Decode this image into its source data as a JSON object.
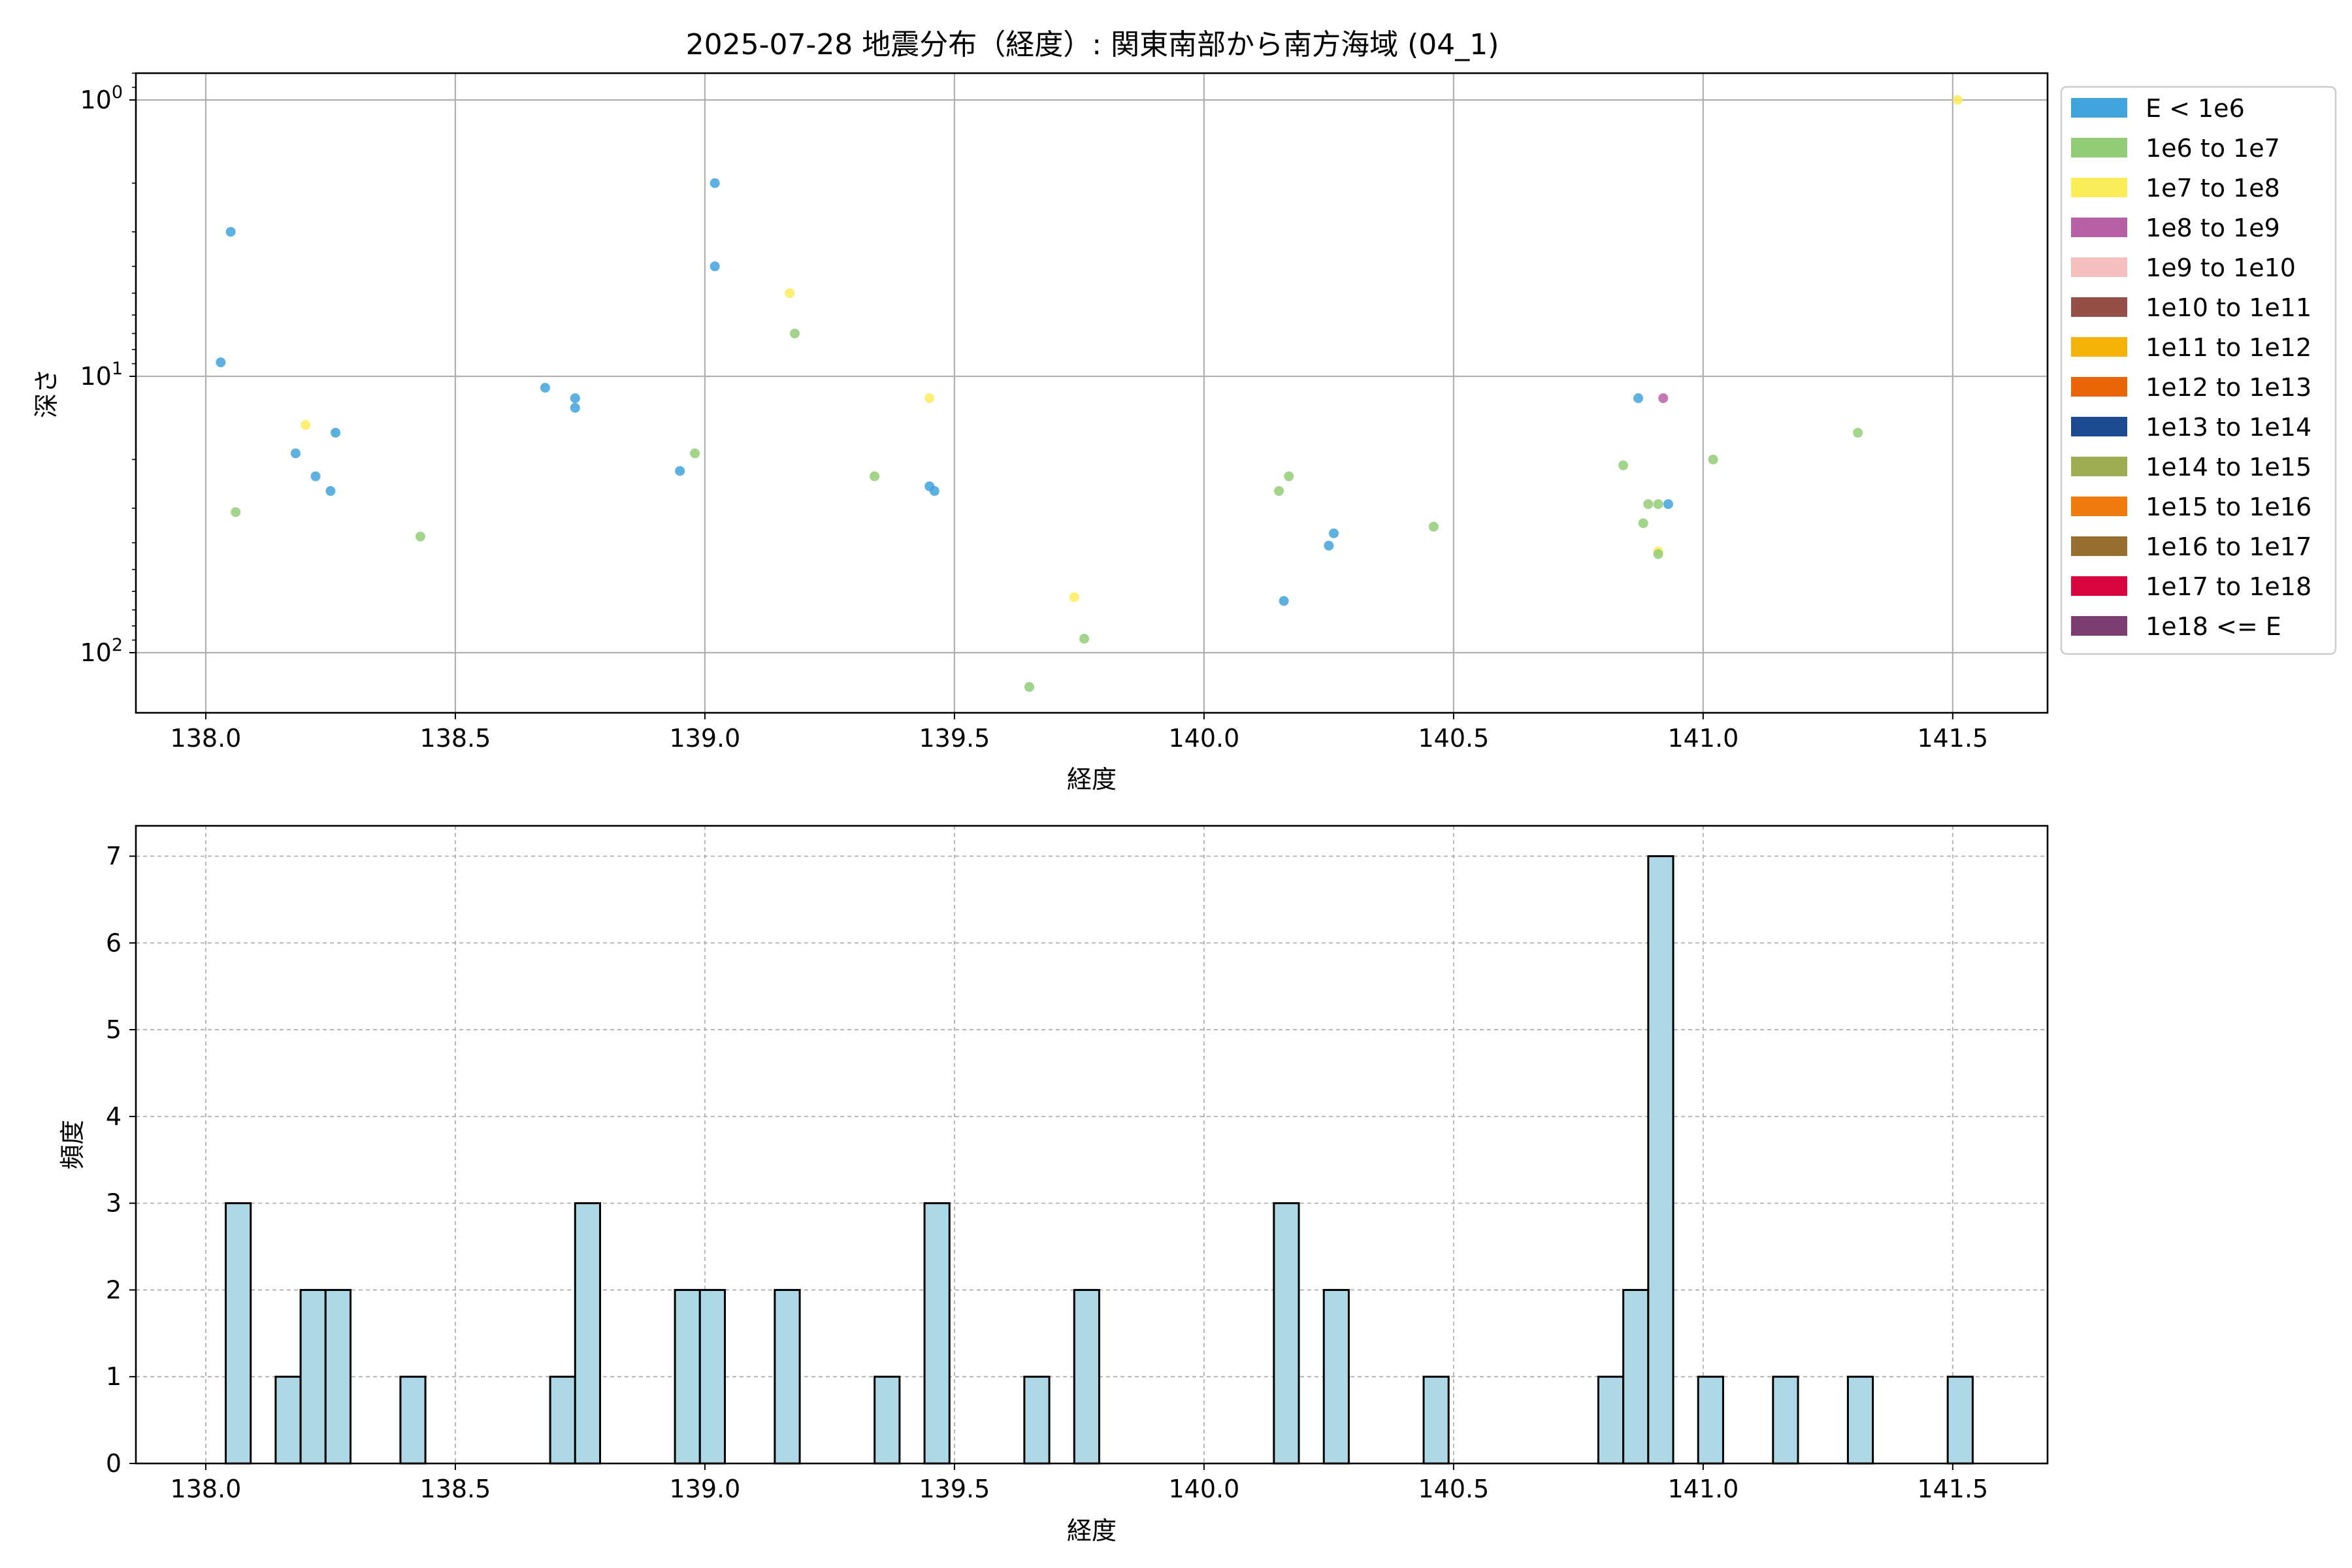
{
  "chart_data": [
    {
      "type": "scatter",
      "title": "2025-07-28 地震分布（経度）: 関東南部から南方海域 (04_1)",
      "xlabel": "経度",
      "ylabel": "深さ",
      "y_scale": "log",
      "y_inverted": true,
      "xlim": [
        137.86,
        141.69
      ],
      "ylim": [
        165,
        0.8
      ],
      "x_ticks": [
        138.0,
        138.5,
        139.0,
        139.5,
        140.0,
        140.5,
        141.0,
        141.5
      ],
      "x_tick_labels": [
        "138.0",
        "138.5",
        "139.0",
        "139.5",
        "140.0",
        "140.5",
        "141.0",
        "141.5"
      ],
      "y_ticks": [
        1,
        10,
        100
      ],
      "grid": true,
      "legend_position": "outside-right",
      "legend": [
        {
          "label": "E < 1e6",
          "color": "#3fa3dc"
        },
        {
          "label": "1e6 to 1e7",
          "color": "#92cc77"
        },
        {
          "label": "1e7 to 1e8",
          "color": "#fbec5a"
        },
        {
          "label": "1e8 to 1e9",
          "color": "#b760a6"
        },
        {
          "label": "1e9 to 1e10",
          "color": "#f4bfbd"
        },
        {
          "label": "1e10 to 1e11",
          "color": "#945048"
        },
        {
          "label": "1e11 to 1e12",
          "color": "#f5b30a"
        },
        {
          "label": "1e12 to 1e13",
          "color": "#ea6506"
        },
        {
          "label": "1e13 to 1e14",
          "color": "#1b4a91"
        },
        {
          "label": "1e14 to 1e15",
          "color": "#9dae52"
        },
        {
          "label": "1e15 to 1e16",
          "color": "#ef7c0c"
        },
        {
          "label": "1e16 to 1e17",
          "color": "#976f2e"
        },
        {
          "label": "1e17 to 1e18",
          "color": "#d8063e"
        },
        {
          "label": "1e18 <= E",
          "color": "#7b3d71"
        }
      ],
      "points": [
        {
          "x": 138.03,
          "y": 8.9,
          "class": 0
        },
        {
          "x": 138.05,
          "y": 3.0,
          "class": 0
        },
        {
          "x": 138.06,
          "y": 31,
          "class": 1
        },
        {
          "x": 138.18,
          "y": 19,
          "class": 0
        },
        {
          "x": 138.2,
          "y": 15,
          "class": 2
        },
        {
          "x": 138.22,
          "y": 23,
          "class": 0
        },
        {
          "x": 138.25,
          "y": 26,
          "class": 0
        },
        {
          "x": 138.26,
          "y": 16,
          "class": 0
        },
        {
          "x": 138.43,
          "y": 38,
          "class": 1
        },
        {
          "x": 138.68,
          "y": 11,
          "class": 0
        },
        {
          "x": 138.74,
          "y": 12,
          "class": 0
        },
        {
          "x": 138.74,
          "y": 13,
          "class": 0
        },
        {
          "x": 138.95,
          "y": 22,
          "class": 0
        },
        {
          "x": 138.98,
          "y": 19,
          "class": 1
        },
        {
          "x": 139.02,
          "y": 2.0,
          "class": 0
        },
        {
          "x": 139.02,
          "y": 4.0,
          "class": 0
        },
        {
          "x": 139.17,
          "y": 5.0,
          "class": 2
        },
        {
          "x": 139.18,
          "y": 7.0,
          "class": 1
        },
        {
          "x": 139.34,
          "y": 23,
          "class": 1
        },
        {
          "x": 139.45,
          "y": 12,
          "class": 2
        },
        {
          "x": 139.45,
          "y": 25,
          "class": 0
        },
        {
          "x": 139.46,
          "y": 26,
          "class": 0
        },
        {
          "x": 139.65,
          "y": 133,
          "class": 1
        },
        {
          "x": 139.74,
          "y": 63,
          "class": 2
        },
        {
          "x": 139.76,
          "y": 89,
          "class": 1
        },
        {
          "x": 140.15,
          "y": 26,
          "class": 1
        },
        {
          "x": 140.16,
          "y": 65,
          "class": 0
        },
        {
          "x": 140.17,
          "y": 23,
          "class": 1
        },
        {
          "x": 140.25,
          "y": 41,
          "class": 0
        },
        {
          "x": 140.26,
          "y": 37,
          "class": 0
        },
        {
          "x": 140.46,
          "y": 35,
          "class": 1
        },
        {
          "x": 140.84,
          "y": 21,
          "class": 1
        },
        {
          "x": 140.87,
          "y": 12,
          "class": 0
        },
        {
          "x": 140.88,
          "y": 34,
          "class": 1
        },
        {
          "x": 140.89,
          "y": 29,
          "class": 1
        },
        {
          "x": 140.91,
          "y": 29,
          "class": 1
        },
        {
          "x": 140.91,
          "y": 43,
          "class": 2
        },
        {
          "x": 140.91,
          "y": 44,
          "class": 1
        },
        {
          "x": 140.92,
          "y": 12,
          "class": 3
        },
        {
          "x": 140.93,
          "y": 29,
          "class": 0
        },
        {
          "x": 141.02,
          "y": 20,
          "class": 1
        },
        {
          "x": 141.31,
          "y": 16,
          "class": 1
        },
        {
          "x": 141.51,
          "y": 1.0,
          "class": 2
        }
      ]
    },
    {
      "type": "bar",
      "subtype": "histogram",
      "xlabel": "経度",
      "ylabel": "頻度",
      "xlim": [
        137.86,
        141.69
      ],
      "ylim": [
        0,
        7.35
      ],
      "x_ticks": [
        138.0,
        138.5,
        139.0,
        139.5,
        140.0,
        140.5,
        141.0,
        141.5
      ],
      "x_tick_labels": [
        "138.0",
        "138.5",
        "139.0",
        "139.5",
        "140.0",
        "140.5",
        "141.0",
        "141.5"
      ],
      "y_ticks": [
        0,
        1,
        2,
        3,
        4,
        5,
        6,
        7
      ],
      "y_tick_labels": [
        "0",
        "1",
        "2",
        "3",
        "4",
        "5",
        "6",
        "7"
      ],
      "grid": true,
      "bar_color": "#add8e6",
      "edge_color": "#000000",
      "bin_width": 0.05,
      "bins": [
        {
          "x_start": 138.04,
          "count": 3
        },
        {
          "x_start": 138.14,
          "count": 1
        },
        {
          "x_start": 138.19,
          "count": 2
        },
        {
          "x_start": 138.24,
          "count": 2
        },
        {
          "x_start": 138.39,
          "count": 1
        },
        {
          "x_start": 138.69,
          "count": 1
        },
        {
          "x_start": 138.74,
          "count": 3
        },
        {
          "x_start": 138.94,
          "count": 2
        },
        {
          "x_start": 138.99,
          "count": 2
        },
        {
          "x_start": 139.14,
          "count": 2
        },
        {
          "x_start": 139.34,
          "count": 1
        },
        {
          "x_start": 139.44,
          "count": 3
        },
        {
          "x_start": 139.64,
          "count": 1
        },
        {
          "x_start": 139.74,
          "count": 2
        },
        {
          "x_start": 140.14,
          "count": 3
        },
        {
          "x_start": 140.24,
          "count": 2
        },
        {
          "x_start": 140.44,
          "count": 1
        },
        {
          "x_start": 140.79,
          "count": 1
        },
        {
          "x_start": 140.84,
          "count": 2
        },
        {
          "x_start": 140.89,
          "count": 7
        },
        {
          "x_start": 140.99,
          "count": 1
        },
        {
          "x_start": 141.14,
          "count": 1
        },
        {
          "x_start": 141.29,
          "count": 1
        },
        {
          "x_start": 141.49,
          "count": 1
        }
      ]
    }
  ]
}
